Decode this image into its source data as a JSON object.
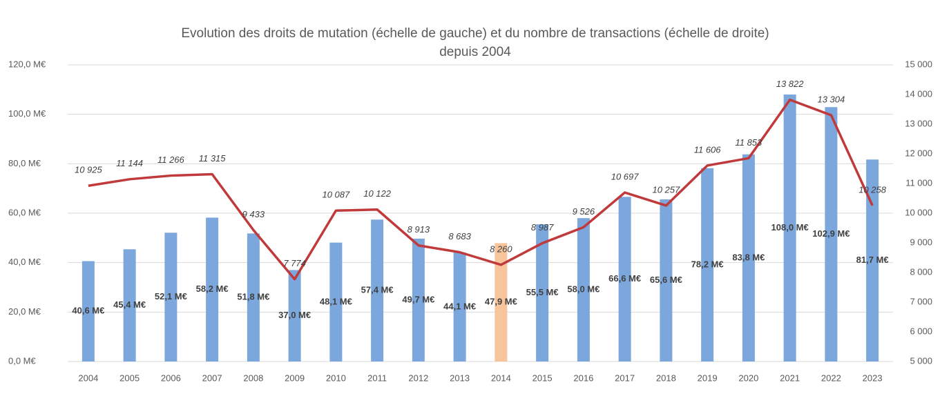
{
  "chart_data": {
    "type": "bar-line",
    "title": [
      "Evolution des  droits de mutation (échelle de gauche) et du nombre de transactions (échelle de droite)",
      "depuis 2004"
    ],
    "categories": [
      "2004",
      "2005",
      "2006",
      "2007",
      "2008",
      "2009",
      "2010",
      "2011",
      "2012",
      "2013",
      "2014",
      "2015",
      "2016",
      "2017",
      "2018",
      "2019",
      "2020",
      "2021",
      "2022",
      "2023"
    ],
    "series": [
      {
        "type": "bar",
        "color": "#7ba7dc",
        "colors": [
          "#7ba7dc",
          "#7ba7dc",
          "#7ba7dc",
          "#7ba7dc",
          "#7ba7dc",
          "#7ba7dc",
          "#7ba7dc",
          "#7ba7dc",
          "#7ba7dc",
          "#7ba7dc",
          "#f8c49c",
          "#7ba7dc",
          "#7ba7dc",
          "#7ba7dc",
          "#7ba7dc",
          "#7ba7dc",
          "#7ba7dc",
          "#7ba7dc",
          "#7ba7dc",
          "#7ba7dc"
        ],
        "values": [
          40.6,
          45.4,
          52.1,
          58.2,
          51.8,
          37.0,
          48.1,
          57.4,
          49.7,
          44.1,
          47.9,
          55.5,
          58.0,
          66.6,
          65.6,
          78.2,
          83.8,
          108.0,
          102.9,
          81.7
        ],
        "value_labels": [
          "40,6 M€",
          "45,4 M€",
          "52,1 M€",
          "58,2 M€",
          "51,8 M€",
          "37,0 M€",
          "48,1 M€",
          "57,4 M€",
          "49,7 M€",
          "44,1 M€",
          "47,9 M€",
          "55,5 M€",
          "58,0 M€",
          "66,6 M€",
          "65,6 M€",
          "78,2 M€",
          "83,8 M€",
          "108,0 M€",
          "102,9 M€",
          "81,7 M€"
        ]
      },
      {
        "type": "line",
        "axis": "y2",
        "color": "#c0393b",
        "values": [
          10925,
          11144,
          11266,
          11315,
          9433,
          7774,
          10087,
          10122,
          8913,
          8683,
          8260,
          8987,
          9526,
          10697,
          10257,
          11606,
          11853,
          13822,
          13304,
          10258
        ],
        "value_labels": [
          "10 925",
          "11 144",
          "11 266",
          "11 315",
          "9 433",
          "7 774",
          "10 087",
          "10 122",
          "8 913",
          "8 683",
          "8 260",
          "8 987",
          "9 526",
          "10 697",
          "10 257",
          "11 606",
          "11 853",
          "13 822",
          "13 304",
          "10 258"
        ]
      }
    ],
    "ylim": [
      0,
      120
    ],
    "yticks": [
      {
        "value": 0,
        "label": "0,0 M€"
      },
      {
        "value": 20,
        "label": "20,0 M€"
      },
      {
        "value": 40,
        "label": "40,0 M€"
      },
      {
        "value": 60,
        "label": "60,0 M€"
      },
      {
        "value": 80,
        "label": "80,0 M€"
      },
      {
        "value": 100,
        "label": "100,0 M€"
      },
      {
        "value": 120,
        "label": "120,0 M€"
      }
    ],
    "y2lim": [
      5000,
      15000
    ],
    "y2ticks": [
      {
        "value": 5000,
        "label": "5 000"
      },
      {
        "value": 6000,
        "label": "6 000"
      },
      {
        "value": 7000,
        "label": "7 000"
      },
      {
        "value": 8000,
        "label": "8 000"
      },
      {
        "value": 9000,
        "label": "9 000"
      },
      {
        "value": 10000,
        "label": "10 000"
      },
      {
        "value": 11000,
        "label": "11 000"
      },
      {
        "value": 12000,
        "label": "12 000"
      },
      {
        "value": 13000,
        "label": "13 000"
      },
      {
        "value": 14000,
        "label": "14 000"
      },
      {
        "value": 15000,
        "label": "15 000"
      }
    ],
    "grid": true
  }
}
